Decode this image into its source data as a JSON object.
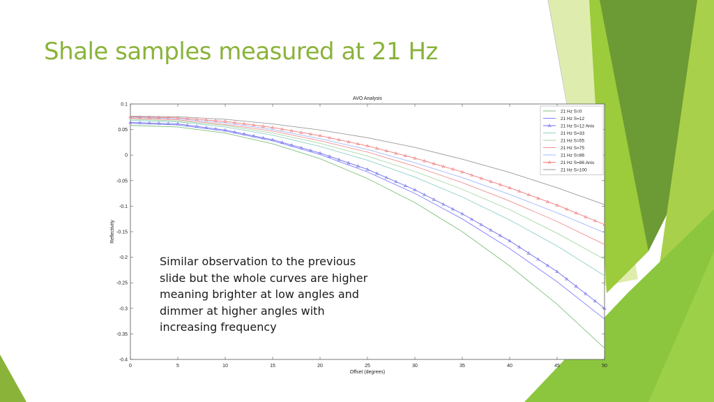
{
  "slide": {
    "title": "Shale samples measured at 21 Hz",
    "note_lines": [
      "Similar observation to the previous",
      "slide but the whole curves are higher",
      "meaning brighter at low angles and",
      "dimmer at higher angles with",
      "increasing frequency"
    ],
    "colors": {
      "title": "#8ab33a",
      "accent_light": "#9ccb3b",
      "accent_dark": "#5e8c2f"
    }
  },
  "chart_data": {
    "type": "line",
    "title": "AVO Analysis",
    "xlabel": "Offset (degrees)",
    "ylabel": "Reflectivity",
    "xlim": [
      0,
      50
    ],
    "ylim": [
      -0.4,
      0.1
    ],
    "xticks": [
      "0",
      "5",
      "10",
      "15",
      "20",
      "25",
      "30",
      "35",
      "40",
      "45",
      "50"
    ],
    "yticks": [
      "0.1",
      "0.05",
      "0",
      "-0.05",
      "-0.1",
      "-0.15",
      "-0.2",
      "-0.25",
      "-0.3",
      "-0.35",
      "-0.4"
    ],
    "legend_position": "top-right",
    "grid": false,
    "x": [
      0,
      5,
      10,
      15,
      20,
      25,
      30,
      35,
      40,
      45,
      50
    ],
    "series": [
      {
        "name": "21 Hz S=0",
        "color": "#7fbf7f",
        "marker": "none",
        "values": [
          0.058,
          0.055,
          0.043,
          0.022,
          -0.007,
          -0.046,
          -0.093,
          -0.15,
          -0.217,
          -0.292,
          -0.378
        ]
      },
      {
        "name": "21 Hz S=12",
        "color": "#7f7fff",
        "marker": "none",
        "values": [
          0.062,
          0.059,
          0.047,
          0.028,
          0.001,
          -0.033,
          -0.075,
          -0.125,
          -0.183,
          -0.248,
          -0.321
        ]
      },
      {
        "name": "21 Hz S=12 Anis",
        "color": "#6f6fe8",
        "marker": "triangle",
        "values": [
          0.064,
          0.061,
          0.049,
          0.03,
          0.004,
          -0.028,
          -0.068,
          -0.115,
          -0.168,
          -0.228,
          -0.3
        ]
      },
      {
        "name": "21 Hz S=33",
        "color": "#8fd0c8",
        "marker": "none",
        "values": [
          0.068,
          0.065,
          0.055,
          0.039,
          0.017,
          -0.01,
          -0.043,
          -0.082,
          -0.127,
          -0.178,
          -0.236
        ]
      },
      {
        "name": "21 Hz S=55",
        "color": "#a6d6a6",
        "marker": "none",
        "values": [
          0.07,
          0.067,
          0.058,
          0.043,
          0.023,
          -0.002,
          -0.032,
          -0.067,
          -0.107,
          -0.153,
          -0.204
        ]
      },
      {
        "name": "21 Hz S=75",
        "color": "#f08f8f",
        "marker": "none",
        "values": [
          0.072,
          0.069,
          0.06,
          0.047,
          0.028,
          0.006,
          -0.022,
          -0.054,
          -0.09,
          -0.13,
          -0.175
        ]
      },
      {
        "name": "21 Hz S=86",
        "color": "#9fb8ff",
        "marker": "none",
        "values": [
          0.074,
          0.071,
          0.063,
          0.05,
          0.032,
          0.011,
          -0.015,
          -0.044,
          -0.077,
          -0.113,
          -0.152
        ]
      },
      {
        "name": "21 Hz S=86 Anis",
        "color": "#ef7a7a",
        "marker": "triangle",
        "values": [
          0.075,
          0.073,
          0.066,
          0.054,
          0.038,
          0.018,
          -0.006,
          -0.033,
          -0.064,
          -0.098,
          -0.136
        ]
      },
      {
        "name": "21 Hz S=100",
        "color": "#9a9a9a",
        "marker": "none",
        "values": [
          0.076,
          0.075,
          0.07,
          0.061,
          0.049,
          0.034,
          0.015,
          -0.008,
          -0.034,
          -0.064,
          -0.097
        ]
      }
    ]
  }
}
